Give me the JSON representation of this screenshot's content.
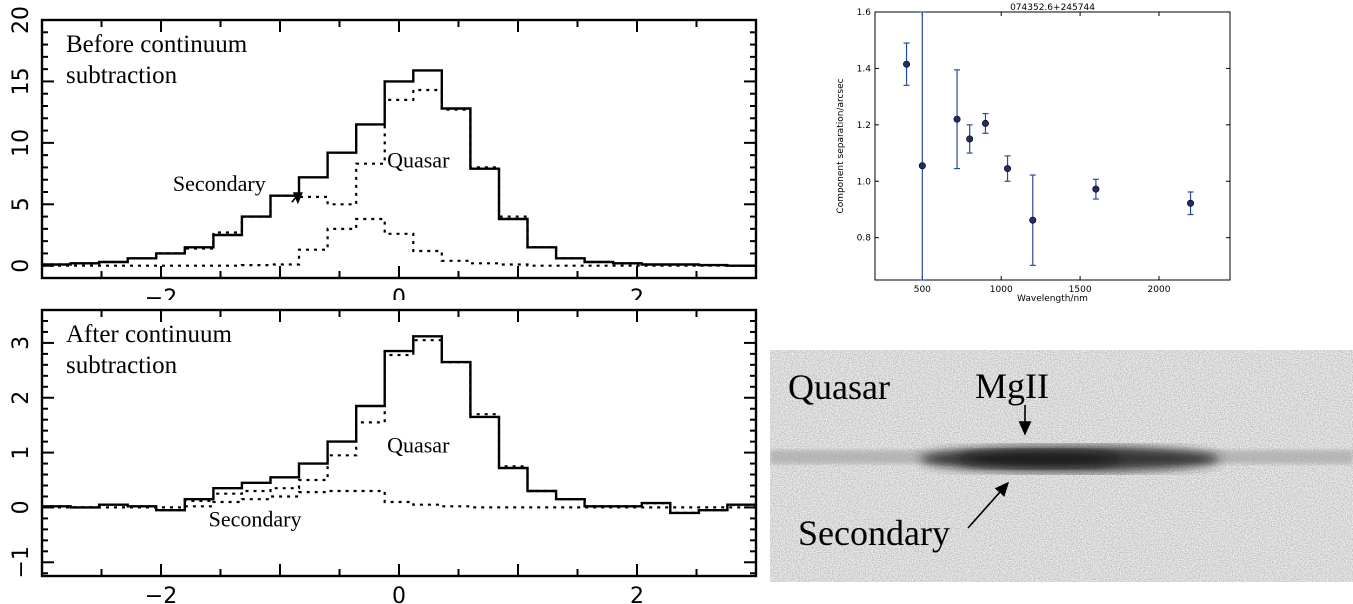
{
  "colors": {
    "axes": "#000000",
    "marker": "#1f2d6b",
    "errorbar": "#2b4a9a",
    "image_background": "#ececec"
  },
  "chart_data": [
    {
      "type": "line",
      "style": "step histogram",
      "text": "Before continuum\nsubtraction",
      "xlim": [
        -3,
        3
      ],
      "ylim": [
        -1,
        20
      ],
      "xticks": [
        -2,
        0,
        2
      ],
      "xtick_labels": [
        "−2",
        "0",
        "2"
      ],
      "yticks": [
        0,
        5,
        10,
        15,
        20
      ],
      "ytick_labels": [
        "0",
        "5",
        "10",
        "15",
        "20"
      ],
      "bin_edges": [
        -3.0,
        -2.76,
        -2.52,
        -2.28,
        -2.04,
        -1.8,
        -1.56,
        -1.32,
        -1.08,
        -0.84,
        -0.6,
        -0.36,
        -0.12,
        0.12,
        0.36,
        0.6,
        0.84,
        1.08,
        1.32,
        1.56,
        1.8,
        2.04,
        2.28,
        2.52,
        2.76,
        3.0
      ],
      "series": [
        {
          "style": "solid",
          "values": [
            0.1,
            0.2,
            0.3,
            0.6,
            1.0,
            1.5,
            2.5,
            4.0,
            5.7,
            7.2,
            9.2,
            11.5,
            15.0,
            15.9,
            12.8,
            7.9,
            3.8,
            1.5,
            0.6,
            0.3,
            0.2,
            0.1,
            0.1,
            0.05,
            0.0
          ]
        },
        {
          "style": "dotted",
          "values": [
            0.1,
            0.2,
            0.3,
            0.6,
            1.0,
            1.4,
            2.7,
            4.0,
            5.7,
            5.6,
            5.0,
            8.3,
            13.5,
            14.3,
            12.7,
            8.0,
            4.0,
            1.5,
            0.6,
            0.3,
            0.2,
            0.1,
            0.1,
            0.05,
            0.0
          ]
        },
        {
          "style": "dotted",
          "values": [
            0.0,
            0.0,
            0.0,
            0.0,
            0.0,
            0.0,
            0.0,
            0.05,
            0.1,
            1.3,
            3.0,
            3.8,
            2.6,
            1.2,
            0.4,
            0.2,
            0.1,
            0.0,
            0.0,
            0.0,
            0.0,
            0.0,
            0.0,
            0.0,
            0.0
          ]
        }
      ],
      "annotations": [
        {
          "text": "Quasar",
          "x": -0.1,
          "y": 8.0
        },
        {
          "text": "Secondary",
          "x": -1.9,
          "y": 6.1,
          "arrow_to": [
            -0.85,
            5.0
          ]
        }
      ]
    },
    {
      "type": "line",
      "style": "step histogram",
      "text": "After continuum\nsubtraction",
      "xlim": [
        -3,
        3
      ],
      "ylim": [
        -1.25,
        3.6
      ],
      "xticks": [
        -2,
        0,
        2
      ],
      "xtick_labels": [
        "−2",
        "0",
        "2"
      ],
      "yticks": [
        -1,
        0,
        1,
        2,
        3
      ],
      "ytick_labels": [
        "−1",
        "0",
        "1",
        "2",
        "3"
      ],
      "bin_edges": [
        -3.0,
        -2.76,
        -2.52,
        -2.28,
        -2.04,
        -1.8,
        -1.56,
        -1.32,
        -1.08,
        -0.84,
        -0.6,
        -0.36,
        -0.12,
        0.12,
        0.36,
        0.6,
        0.84,
        1.08,
        1.32,
        1.56,
        1.8,
        2.04,
        2.28,
        2.52,
        2.76,
        3.0
      ],
      "series": [
        {
          "style": "solid",
          "values": [
            0.02,
            0.0,
            0.05,
            0.02,
            -0.05,
            0.15,
            0.35,
            0.45,
            0.55,
            0.8,
            1.2,
            1.85,
            2.85,
            3.12,
            2.65,
            1.65,
            0.72,
            0.3,
            0.15,
            0.02,
            0.02,
            0.08,
            -0.1,
            -0.05,
            0.05
          ]
        },
        {
          "style": "dotted",
          "values": [
            0.02,
            0.0,
            0.05,
            0.02,
            -0.05,
            0.12,
            0.25,
            0.3,
            0.35,
            0.5,
            0.95,
            1.55,
            2.78,
            3.05,
            2.65,
            1.7,
            0.75,
            0.3,
            0.15,
            0.02,
            0.02,
            0.08,
            -0.1,
            -0.05,
            0.05
          ]
        },
        {
          "style": "dotted",
          "values": [
            0.0,
            0.0,
            0.0,
            0.0,
            0.0,
            0.02,
            0.1,
            0.15,
            0.2,
            0.28,
            0.3,
            0.3,
            0.1,
            0.05,
            0.02,
            0.0,
            0.0,
            0.0,
            0.0,
            0.0,
            0.0,
            0.0,
            0.0,
            0.0,
            0.0
          ]
        }
      ],
      "annotations": [
        {
          "text": "Quasar",
          "x": -0.1,
          "y": 1.0
        },
        {
          "text": "Secondary",
          "x": -1.6,
          "y": -0.35
        }
      ]
    },
    {
      "type": "scatter",
      "title": "074352.6+245744",
      "xlabel": "Wavelength/nm",
      "ylabel": "Component separation/arcsec",
      "xlim": [
        200,
        2450
      ],
      "ylim": [
        0.65,
        1.6
      ],
      "xticks": [
        500,
        1000,
        1500,
        2000
      ],
      "yticks": [
        0.8,
        1.0,
        1.2,
        1.4,
        1.6
      ],
      "ytick_labels": [
        "0.8",
        "1.0",
        "1.2",
        "1.4",
        "1.6"
      ],
      "points": [
        {
          "x": 400,
          "y": 1.415,
          "err": 0.075
        },
        {
          "x": 500,
          "y": 1.055,
          "err": 0.6
        },
        {
          "x": 720,
          "y": 1.22,
          "err": 0.175
        },
        {
          "x": 800,
          "y": 1.15,
          "err": 0.05
        },
        {
          "x": 900,
          "y": 1.205,
          "err": 0.035
        },
        {
          "x": 1040,
          "y": 1.045,
          "err": 0.045
        },
        {
          "x": 1200,
          "y": 0.862,
          "err": 0.16
        },
        {
          "x": 1600,
          "y": 0.972,
          "err": 0.035
        },
        {
          "x": 2200,
          "y": 0.922,
          "err": 0.04
        }
      ]
    }
  ],
  "image_panel": {
    "labels": {
      "quasar": "Quasar",
      "line": "MgII",
      "secondary": "Secondary"
    }
  }
}
